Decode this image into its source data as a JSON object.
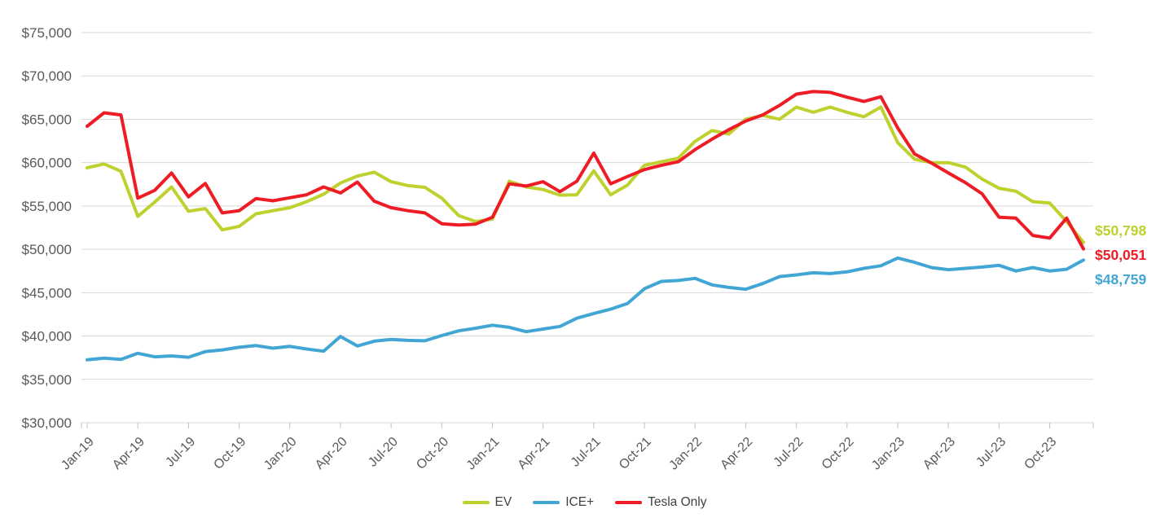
{
  "chart_data": {
    "type": "line",
    "title": "",
    "xlabel": "",
    "ylabel": "",
    "ylim": [
      30000,
      75000
    ],
    "ytick_step": 5000,
    "y_tick_labels": [
      "$75,000",
      "$70,000",
      "$65,000",
      "$60,000",
      "$55,000",
      "$50,000",
      "$45,000",
      "$40,000",
      "$35,000",
      "$30,000"
    ],
    "x": [
      "Jan-19",
      "Feb-19",
      "Mar-19",
      "Apr-19",
      "May-19",
      "Jun-19",
      "Jul-19",
      "Aug-19",
      "Sep-19",
      "Oct-19",
      "Nov-19",
      "Dec-19",
      "Jan-20",
      "Feb-20",
      "Mar-20",
      "Apr-20",
      "May-20",
      "Jun-20",
      "Jul-20",
      "Aug-20",
      "Sep-20",
      "Oct-20",
      "Nov-20",
      "Dec-20",
      "Jan-21",
      "Feb-21",
      "Mar-21",
      "Apr-21",
      "May-21",
      "Jun-21",
      "Jul-21",
      "Aug-21",
      "Sep-21",
      "Oct-21",
      "Nov-21",
      "Dec-21",
      "Jan-22",
      "Feb-22",
      "Mar-22",
      "Apr-22",
      "May-22",
      "Jun-22",
      "Jul-22",
      "Aug-22",
      "Sep-22",
      "Oct-22",
      "Nov-22",
      "Dec-22",
      "Jan-23",
      "Feb-23",
      "Mar-23",
      "Apr-23",
      "May-23",
      "Jun-23",
      "Jul-23",
      "Aug-23",
      "Sep-23",
      "Oct-23",
      "Nov-23",
      "Dec-23"
    ],
    "x_tick_interval": 3,
    "x_tick_labels": [
      "Jan-19",
      "Apr-19",
      "Jul-19",
      "Oct-19",
      "Jan-20",
      "Apr-20",
      "Jul-20",
      "Oct-20",
      "Jan-21",
      "Apr-21",
      "Jul-21",
      "Oct-21",
      "Jan-22",
      "Apr-22",
      "Jul-22",
      "Oct-22",
      "Jan-23",
      "Apr-23",
      "Jul-23",
      "Oct-23"
    ],
    "grid": "horizontal",
    "legend_position": "bottom",
    "series": [
      {
        "name": "EV",
        "color": "#bed12f",
        "values": [
          59400,
          59850,
          59000,
          53800,
          55450,
          57200,
          54400,
          54700,
          52250,
          52650,
          54100,
          54450,
          54800,
          55500,
          56350,
          57650,
          58450,
          58900,
          57800,
          57350,
          57150,
          55900,
          53900,
          53200,
          53500,
          57850,
          57200,
          56900,
          56250,
          56300,
          59050,
          56300,
          57400,
          59700,
          60100,
          60500,
          62450,
          63700,
          63300,
          65000,
          65450,
          65000,
          66400,
          65800,
          66400,
          65800,
          65300,
          66400,
          62300,
          60400,
          60000,
          60000,
          59500,
          58100,
          57050,
          56700,
          55500,
          55350,
          53200,
          50798
        ]
      },
      {
        "name": "ICE+",
        "color": "#42a6d5",
        "values": [
          37250,
          37450,
          37300,
          38000,
          37600,
          37700,
          37550,
          38200,
          38400,
          38700,
          38900,
          38600,
          38800,
          38500,
          38250,
          39950,
          38850,
          39400,
          39600,
          39500,
          39450,
          40050,
          40600,
          40900,
          41250,
          41000,
          40500,
          40800,
          41100,
          42050,
          42600,
          43100,
          43750,
          45450,
          46300,
          46400,
          46650,
          45900,
          45600,
          45400,
          46050,
          46850,
          47050,
          47300,
          47200,
          47400,
          47800,
          48100,
          49000,
          48500,
          47900,
          47650,
          47800,
          47950,
          48150,
          47500,
          47900,
          47500,
          47700,
          48759
        ]
      },
      {
        "name": "Tesla Only",
        "color": "#ee1c25",
        "values": [
          64200,
          65750,
          65500,
          55900,
          56800,
          58800,
          56050,
          57600,
          54200,
          54450,
          55850,
          55600,
          55950,
          56300,
          57200,
          56500,
          57750,
          55550,
          54800,
          54450,
          54200,
          52950,
          52800,
          52900,
          53700,
          57550,
          57300,
          57800,
          56650,
          57850,
          61100,
          57550,
          58400,
          59200,
          59700,
          60100,
          61500,
          62700,
          63800,
          64800,
          65500,
          66600,
          67900,
          68200,
          68100,
          67550,
          67050,
          67600,
          64000,
          61000,
          59950,
          58800,
          57700,
          56400,
          53700,
          53600,
          51600,
          51300,
          53600,
          50051
        ]
      }
    ],
    "end_labels": [
      {
        "series": "EV",
        "text": "$50,798",
        "color": "#bed12f"
      },
      {
        "series": "Tesla Only",
        "text": "$50,051",
        "color": "#ee1c25"
      },
      {
        "series": "ICE+",
        "text": "$48,759",
        "color": "#42a6d5"
      }
    ]
  },
  "legend": {
    "items": [
      {
        "label": "EV",
        "color": "#bed12f"
      },
      {
        "label": "ICE+",
        "color": "#42a6d5"
      },
      {
        "label": "Tesla Only",
        "color": "#ee1c25"
      }
    ]
  },
  "style": {
    "grid_color": "#d9d9d9",
    "tick_color": "#bfbfbf",
    "axis_label_color": "#595959",
    "legend_text_color": "#404040",
    "background": "#ffffff"
  }
}
